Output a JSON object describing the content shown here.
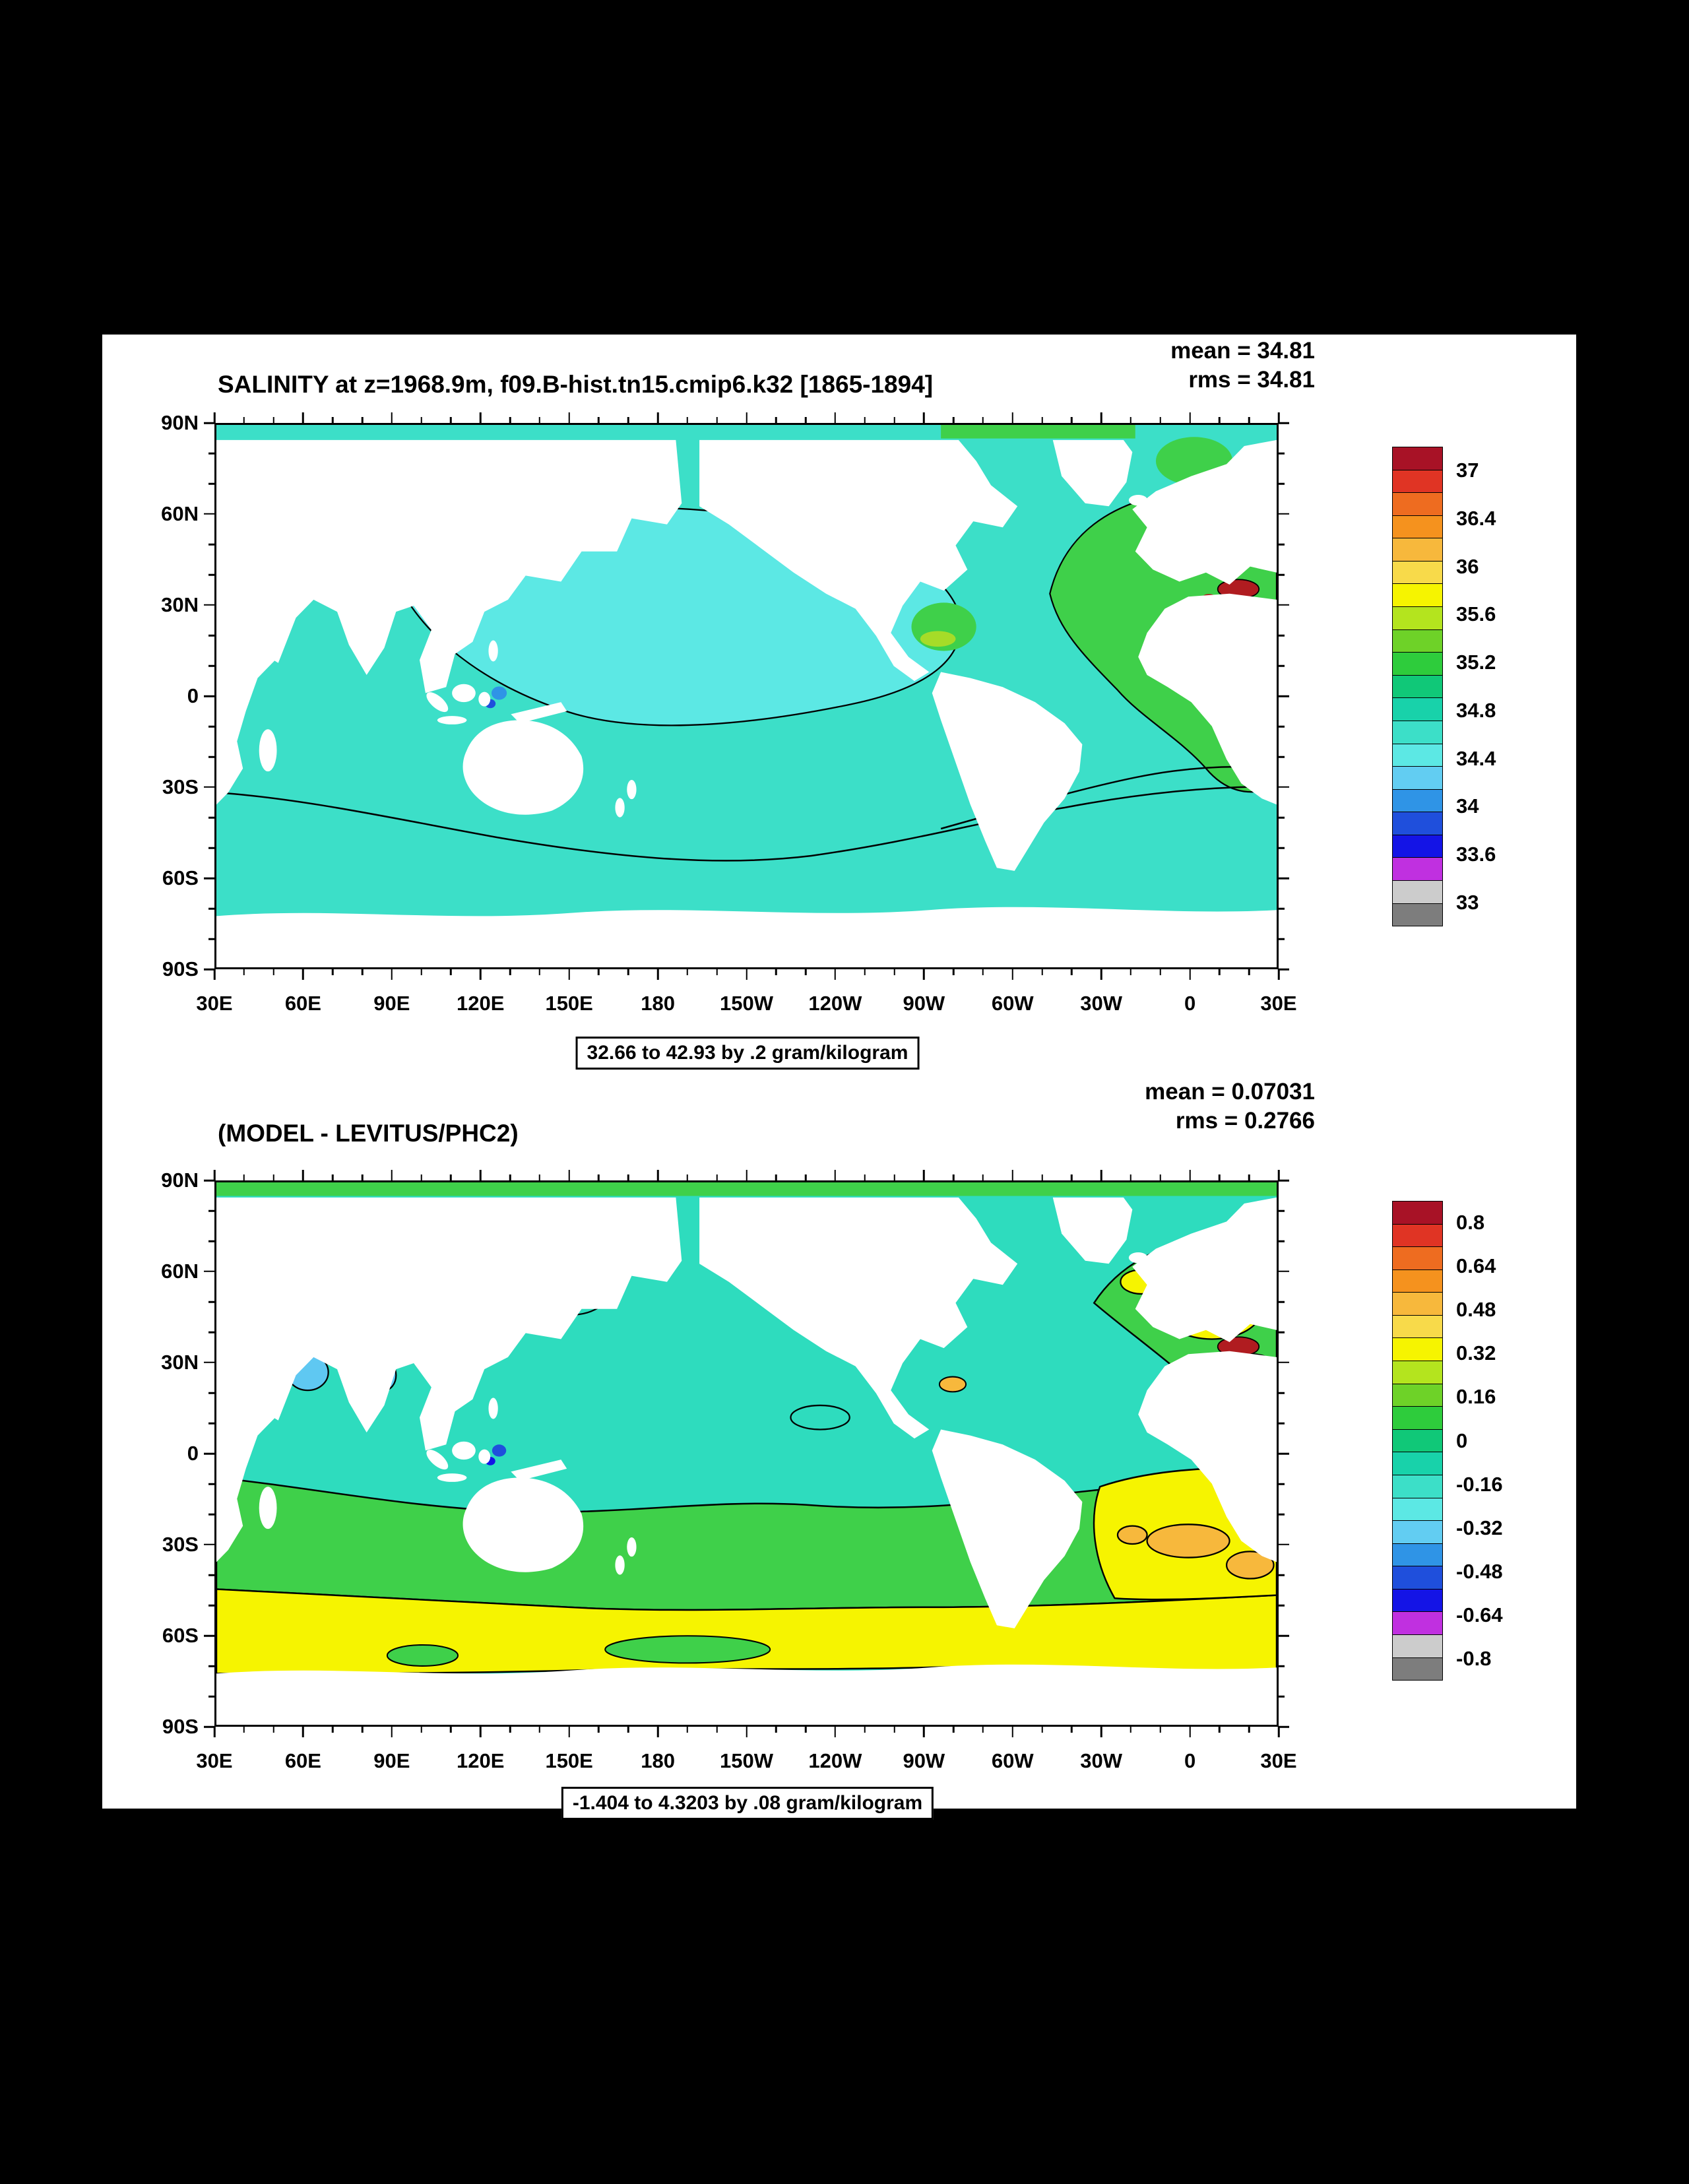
{
  "window": {
    "background": "#000000",
    "panel_background": "#ffffff"
  },
  "palette": {
    "colors": [
      "#a81226",
      "#e03424",
      "#ee6c20",
      "#f5921e",
      "#f7b83c",
      "#f8da4a",
      "#f6f400",
      "#b4e41e",
      "#6ed228",
      "#2ecc3c",
      "#10c878",
      "#18d2aa",
      "#3cdfc8",
      "#5ce8e4",
      "#62cdf2",
      "#2f94e6",
      "#1f4fdc",
      "#1414e6",
      "#c030e0",
      "#cccccc",
      "#7d7d7d"
    ]
  },
  "axes": {
    "lat_labels": [
      "90N",
      "60N",
      "30N",
      "0",
      "30S",
      "60S",
      "90S"
    ],
    "lon_labels": [
      "30E",
      "60E",
      "90E",
      "120E",
      "150E",
      "180",
      "150W",
      "120W",
      "90W",
      "60W",
      "30W",
      "0",
      "30E"
    ]
  },
  "charts": [
    {
      "title": "SALINITY at z=1968.9m, f09.B-hist.tn15.cmip6.k32 [1865-1894]",
      "mean_label": "mean = 34.81",
      "rms_label": "rms = 34.81",
      "range_label": "32.66 to 42.93 by .2 gram/kilogram",
      "colorbar_labels": [
        "37",
        "36.4",
        "36",
        "35.6",
        "35.2",
        "34.8",
        "34.4",
        "34",
        "33.6",
        "33"
      ]
    },
    {
      "title": "(MODEL - LEVITUS/PHC2)",
      "mean_label": "mean = 0.07031",
      "rms_label": "rms = 0.2766",
      "range_label": "-1.404 to 4.3203 by .08 gram/kilogram",
      "colorbar_labels": [
        "0.8",
        "0.64",
        "0.48",
        "0.32",
        "0.16",
        "0",
        "-0.16",
        "-0.32",
        "-0.48",
        "-0.64",
        "-0.8"
      ]
    }
  ],
  "chart_data": [
    {
      "type": "heatmap",
      "title": "SALINITY at z=1968.9m, f09.B-hist.tn15.cmip6.k32 [1865-1894]",
      "variable": "SALINITY",
      "depth": "z=1968.9m",
      "case": "f09.B-hist.tn15.cmip6.k32",
      "period": "1865-1894",
      "units": "gram/kilogram",
      "stats": {
        "mean": 34.81,
        "rms": 34.81
      },
      "field_range": {
        "min": 32.66,
        "max": 42.93,
        "contour_interval": 0.2
      },
      "colorbar_tick_values": [
        37,
        36.4,
        36,
        35.6,
        35.2,
        34.8,
        34.4,
        34,
        33.6,
        33
      ],
      "x_ticks": [
        "30E",
        "60E",
        "90E",
        "120E",
        "150E",
        "180",
        "150W",
        "120W",
        "90W",
        "60W",
        "30W",
        "0",
        "30E"
      ],
      "y_ticks": [
        "90N",
        "60N",
        "30N",
        "0",
        "30S",
        "60S",
        "90S"
      ],
      "projection": "cylindrical equidistant, longitude 30E eastward around to 30E, latitude 90S-90N, land masked white",
      "regions": [
        {
          "area": "North Pacific basin",
          "approx_value": "34.2-34.4 (light cyan)"
        },
        {
          "area": "Indian Ocean and South Pacific",
          "approx_value": "34.6-34.8 (turquoise)"
        },
        {
          "area": "Southern Ocean",
          "approx_value": "34.6-34.8 (turquoise)"
        },
        {
          "area": "North and tropical Atlantic",
          "approx_value": "34.9-35.2 (green)"
        },
        {
          "area": "Caribbean patch",
          "approx_value": "35.2-35.4 (yellow-green)"
        },
        {
          "area": "Mediterranean outflow near 35N at east edge",
          "approx_value": "36.8-37+ (dark red)"
        },
        {
          "area": "Indonesian seas spots",
          "approx_value": "33.9-34.1 (blue)"
        },
        {
          "area": "Arctic strip at top edge",
          "approx_value": "34.6-35.0 (turquoise/green)"
        }
      ]
    },
    {
      "type": "heatmap",
      "title": "(MODEL - LEVITUS/PHC2)",
      "variable": "SALINITY difference (model minus observations)",
      "units": "gram/kilogram",
      "stats": {
        "mean": 0.07031,
        "rms": 0.2766
      },
      "field_range": {
        "min": -1.404,
        "max": 4.3203,
        "contour_interval": 0.08
      },
      "colorbar_tick_values": [
        0.8,
        0.64,
        0.48,
        0.32,
        0.16,
        0,
        -0.16,
        -0.32,
        -0.48,
        -0.64,
        -0.8
      ],
      "x_ticks": [
        "30E",
        "60E",
        "90E",
        "120E",
        "150E",
        "180",
        "150W",
        "120W",
        "90W",
        "60W",
        "30W",
        "0",
        "30E"
      ],
      "y_ticks": [
        "90N",
        "60N",
        "30N",
        "0",
        "30S",
        "60S",
        "90S"
      ],
      "projection": "cylindrical equidistant, longitude 30E eastward around to 30E, latitude 90S-90N, land masked white",
      "regions": [
        {
          "area": "North Pacific and tropical Indo-Pacific",
          "approx_value": "-0.16-0 (teal)"
        },
        {
          "area": "Southern mid-latitude band 20S-45S",
          "approx_value": "0-0.16 (green)"
        },
        {
          "area": "Southern Ocean band 45S-70S",
          "approx_value": "0.16-0.32 (yellow)"
        },
        {
          "area": "North Atlantic",
          "approx_value": "0.08-0.32 (green/yellow mix)"
        },
        {
          "area": "South Atlantic patches 25S-40S",
          "approx_value": "0.32-0.48 (orange)"
        },
        {
          "area": "Mediterranean outflow near 35N at east edge",
          "approx_value": "0.8+ (dark red)"
        },
        {
          "area": "Arabian Sea / Bay of Bengal",
          "approx_value": "-0.32 to -0.16 (cyan)"
        },
        {
          "area": "Indonesian seas spots",
          "approx_value": "-0.64 to -0.4 (blue)"
        },
        {
          "area": "Arctic strip at top edge",
          "approx_value": "0-0.16 (green)"
        }
      ]
    }
  ]
}
